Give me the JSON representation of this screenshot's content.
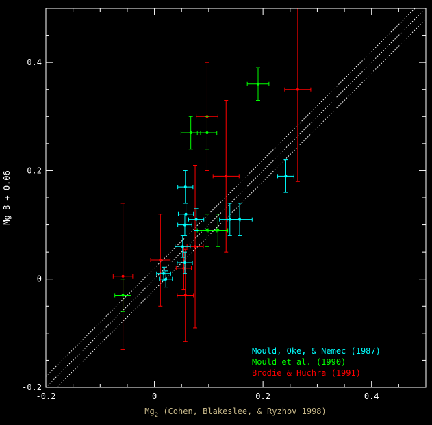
{
  "chart_data": {
    "type": "scatter",
    "title": "",
    "xlabel": "Mg2 (Cohen, Blakeslee, & Ryzhov 1998)",
    "xlabel_main": "Mg",
    "xlabel_sub": "2",
    "xlabel_rest": " (Cohen, Blakeslee, & Ryzhov 1998)",
    "ylabel": "Mg B + 0.06",
    "xlim": [
      -0.2,
      0.5
    ],
    "ylim": [
      -0.2,
      0.5
    ],
    "xticks": [
      -0.2,
      0,
      0.2,
      0.4
    ],
    "xtick_labels": [
      "-0.2",
      "0",
      "0.2",
      "0.4"
    ],
    "yticks": [
      -0.2,
      0,
      0.2,
      0.4
    ],
    "ytick_labels": [
      "-0.2",
      "0",
      "0.2",
      "0.4"
    ],
    "grid": false,
    "legend_position": "bottom-right",
    "reference_lines": [
      {
        "slope": 1,
        "intercept": 0,
        "style": "dotted"
      },
      {
        "slope": 1,
        "intercept": 0.02,
        "style": "dotted"
      },
      {
        "slope": 1,
        "intercept": -0.02,
        "style": "dotted"
      }
    ],
    "series": [
      {
        "name": "Mould, Oke, & Nemec (1987)",
        "color": "#00ffff",
        "points": [
          {
            "x": 0.017,
            "y": 0.01,
            "xerr": 0.013,
            "yerr": 0.012
          },
          {
            "x": 0.021,
            "y": 0.0,
            "xerr": 0.012,
            "yerr": 0.015
          },
          {
            "x": 0.052,
            "y": 0.06,
            "xerr": 0.014,
            "yerr": 0.02
          },
          {
            "x": 0.056,
            "y": 0.03,
            "xerr": 0.014,
            "yerr": 0.02
          },
          {
            "x": 0.056,
            "y": 0.1,
            "xerr": 0.013,
            "yerr": 0.02
          },
          {
            "x": 0.058,
            "y": 0.12,
            "xerr": 0.014,
            "yerr": 0.02
          },
          {
            "x": 0.057,
            "y": 0.17,
            "xerr": 0.014,
            "yerr": 0.03
          },
          {
            "x": 0.077,
            "y": 0.11,
            "xerr": 0.014,
            "yerr": 0.02
          },
          {
            "x": 0.139,
            "y": 0.11,
            "xerr": 0.019,
            "yerr": 0.03
          },
          {
            "x": 0.157,
            "y": 0.11,
            "xerr": 0.023,
            "yerr": 0.03
          },
          {
            "x": 0.242,
            "y": 0.19,
            "xerr": 0.015,
            "yerr": 0.03
          }
        ]
      },
      {
        "name": "Mould et al. (1990)",
        "color": "#00ff00",
        "points": [
          {
            "x": -0.058,
            "y": -0.03,
            "xerr": 0.015,
            "yerr": 0.03
          },
          {
            "x": 0.067,
            "y": 0.27,
            "xerr": 0.018,
            "yerr": 0.03
          },
          {
            "x": 0.097,
            "y": 0.27,
            "xerr": 0.018,
            "yerr": 0.03
          },
          {
            "x": 0.097,
            "y": 0.09,
            "xerr": 0.018,
            "yerr": 0.03
          },
          {
            "x": 0.117,
            "y": 0.09,
            "xerr": 0.018,
            "yerr": 0.03
          },
          {
            "x": 0.191,
            "y": 0.36,
            "xerr": 0.02,
            "yerr": 0.03
          }
        ]
      },
      {
        "name": "Brodie & Huchra (1991)",
        "color": "#ff0000",
        "points": [
          {
            "x": -0.058,
            "y": 0.005,
            "xerr": 0.018,
            "yerr": 0.135
          },
          {
            "x": 0.011,
            "y": 0.035,
            "xerr": 0.018,
            "yerr": 0.085
          },
          {
            "x": 0.054,
            "y": 0.02,
            "xerr": 0.014,
            "yerr": 0.04
          },
          {
            "x": 0.057,
            "y": -0.03,
            "xerr": 0.015,
            "yerr": 0.085
          },
          {
            "x": 0.075,
            "y": 0.06,
            "xerr": 0.015,
            "yerr": 0.15
          },
          {
            "x": 0.097,
            "y": 0.3,
            "xerr": 0.02,
            "yerr": 0.1
          },
          {
            "x": 0.132,
            "y": 0.19,
            "xerr": 0.024,
            "yerr": 0.14
          },
          {
            "x": 0.264,
            "y": 0.35,
            "xerr": 0.024,
            "yerr": 0.17
          }
        ]
      }
    ]
  }
}
